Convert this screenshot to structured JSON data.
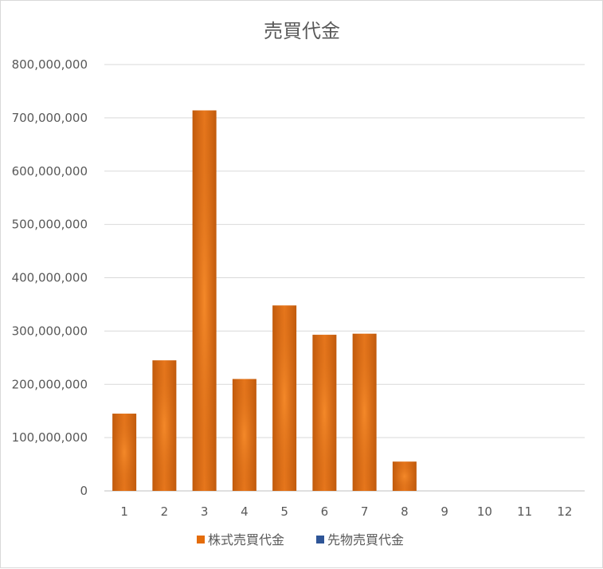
{
  "chart_data": {
    "type": "bar",
    "title": "売買代金",
    "xlabel": "",
    "ylabel": "",
    "categories": [
      "1",
      "2",
      "3",
      "4",
      "5",
      "6",
      "7",
      "8",
      "9",
      "10",
      "11",
      "12"
    ],
    "series": [
      {
        "name": "株式売買代金",
        "color": "#E46C0A",
        "values": [
          145000000,
          245000000,
          714000000,
          210000000,
          348000000,
          293000000,
          295000000,
          55000000,
          null,
          null,
          null,
          null
        ]
      },
      {
        "name": "先物売買代金",
        "color": "#2E5597",
        "values": [
          null,
          null,
          null,
          null,
          null,
          null,
          null,
          null,
          null,
          null,
          null,
          null
        ]
      }
    ],
    "ylim": [
      0,
      800000000
    ],
    "yticks": [
      "0",
      "100,000,000",
      "200,000,000",
      "300,000,000",
      "400,000,000",
      "500,000,000",
      "600,000,000",
      "700,000,000",
      "800,000,000"
    ],
    "grid": true,
    "legend_position": "bottom"
  }
}
